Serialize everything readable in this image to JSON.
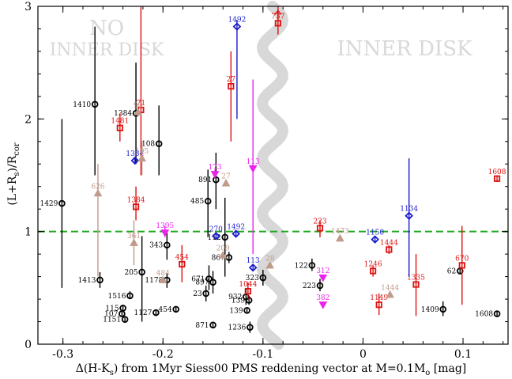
{
  "chart_data": {
    "type": "scatter",
    "title": "",
    "xlabel": "Δ(H-K_s)  from 1Myr Siess00 PMS reddening vector at M=0.1M_o [mag]",
    "xlabel_parts": {
      "a": "Δ(H-K",
      "b": "s",
      "c": ")  from 1Myr Siess00 PMS reddening vector at M=0.1M",
      "d": "o",
      "e": " [mag]"
    },
    "ylabel": "(L+R_s)/R_cor",
    "ylabel_parts": {
      "a": "(L+R",
      "b": "s",
      "c": ")/R",
      "d": "cor"
    },
    "xlim": [
      -0.325,
      0.145
    ],
    "ylim": [
      0,
      3
    ],
    "x_ticks": [
      -0.3,
      -0.2,
      -0.1,
      0,
      0.1
    ],
    "x_tick_labels": [
      "-0.3",
      "-0.2",
      "-0.1",
      "0",
      "0.1"
    ],
    "y_ticks": [
      0,
      1,
      2,
      3
    ],
    "y_tick_labels": [
      "0",
      "1",
      "2",
      "3"
    ],
    "reference_line": {
      "y": 1,
      "style": "dashed",
      "color": "#22aa22"
    },
    "region_labels": {
      "left_line1": "NO",
      "left_line2": "INNER DISK",
      "right": "INNER DISK"
    },
    "colors": {
      "black": "#000000",
      "red": "#dd1111",
      "blue": "#1a1acc",
      "magenta": "#ee22ee",
      "tan": "#c09a8a",
      "green": "#22aa22",
      "band": "#d8d8d8"
    },
    "markers": {
      "black": "circle",
      "red": "square",
      "blue": "diamond",
      "magenta": "triangle-down",
      "tan": "triangle-up"
    },
    "series": [
      {
        "color": "black",
        "points": [
          {
            "x": -0.301,
            "y": 1.25,
            "lo": 0.5,
            "hi": 2.0,
            "label": "1429"
          },
          {
            "x": -0.268,
            "y": 2.13,
            "lo": 1.5,
            "hi": 2.82,
            "label": "1410"
          },
          {
            "x": -0.227,
            "y": 2.05,
            "lo": 1.6,
            "hi": 2.5,
            "label": "1384"
          },
          {
            "x": -0.204,
            "y": 1.78,
            "lo": 1.5,
            "hi": 2.12,
            "label": "108"
          },
          {
            "x": -0.263,
            "y": 0.57,
            "lo": 0.5,
            "hi": 0.64,
            "label": "1413"
          },
          {
            "x": -0.233,
            "y": 0.43,
            "lo": 0.4,
            "hi": 0.47,
            "label": "1516"
          },
          {
            "x": -0.221,
            "y": 0.64,
            "lo": 0.2,
            "hi": 0.96,
            "label": "205"
          },
          {
            "x": -0.196,
            "y": 0.88,
            "lo": 0.75,
            "hi": 1.0,
            "label": "343"
          },
          {
            "x": -0.196,
            "y": 0.57,
            "lo": 0.5,
            "hi": 0.63,
            "label": "1178"
          },
          {
            "x": -0.24,
            "y": 0.32,
            "lo": 0.3,
            "hi": 0.35,
            "label": "115"
          },
          {
            "x": -0.241,
            "y": 0.27,
            "lo": 0.25,
            "hi": 0.3,
            "label": "107"
          },
          {
            "x": -0.238,
            "y": 0.22,
            "lo": 0.2,
            "hi": 0.25,
            "label": "1151"
          },
          {
            "x": -0.207,
            "y": 0.28,
            "lo": 0.26,
            "hi": 0.31,
            "label": "1127"
          },
          {
            "x": -0.187,
            "y": 0.31,
            "lo": 0.29,
            "hi": 0.33,
            "label": "454"
          },
          {
            "x": -0.155,
            "y": 1.27,
            "lo": 0.95,
            "hi": 1.55,
            "label": "485"
          },
          {
            "x": -0.147,
            "y": 1.46,
            "lo": 1.2,
            "hi": 1.7,
            "label": "891"
          },
          {
            "x": -0.138,
            "y": 0.95,
            "lo": 0.6,
            "hi": 1.3,
            "label": "112"
          },
          {
            "x": -0.134,
            "y": 0.77,
            "lo": 0.72,
            "hi": 0.82,
            "label": "867"
          },
          {
            "x": -0.154,
            "y": 0.58,
            "lo": 0.48,
            "hi": 0.7,
            "label": "671"
          },
          {
            "x": -0.15,
            "y": 0.55,
            "lo": 0.45,
            "hi": 0.65,
            "label": "897"
          },
          {
            "x": -0.157,
            "y": 0.45,
            "lo": 0.38,
            "hi": 0.52,
            "label": "23"
          },
          {
            "x": -0.15,
            "y": 0.17,
            "lo": 0.15,
            "hi": 0.2,
            "label": "871"
          },
          {
            "x": -0.117,
            "y": 0.42,
            "lo": 0.35,
            "hi": 0.5,
            "label": "932"
          },
          {
            "x": -0.114,
            "y": 0.39,
            "lo": 0.35,
            "hi": 0.43,
            "label": "139"
          },
          {
            "x": -0.116,
            "y": 0.3,
            "lo": 0.28,
            "hi": 0.32,
            "label": "139"
          },
          {
            "x": -0.113,
            "y": 0.15,
            "lo": 0.1,
            "hi": 0.2,
            "label": "1236"
          },
          {
            "x": -0.1,
            "y": 0.59,
            "lo": 0.52,
            "hi": 0.66,
            "label": "323"
          },
          {
            "x": -0.051,
            "y": 0.7,
            "lo": 0.65,
            "hi": 0.76,
            "label": "122"
          },
          {
            "x": -0.043,
            "y": 0.52,
            "lo": 0.47,
            "hi": 0.58,
            "label": "223"
          },
          {
            "x": 0.08,
            "y": 0.31,
            "lo": 0.25,
            "hi": 0.38,
            "label": "1409"
          },
          {
            "x": 0.097,
            "y": 0.65,
            "lo": 0.62,
            "hi": 0.68,
            "label": "62"
          },
          {
            "x": 0.134,
            "y": 0.27,
            "lo": 0.25,
            "hi": 0.29,
            "label": "1608"
          }
        ]
      },
      {
        "color": "red",
        "points": [
          {
            "x": -0.243,
            "y": 1.92,
            "lo": 1.8,
            "hi": 2.05,
            "label": "1481"
          },
          {
            "x": -0.222,
            "y": 2.08,
            "lo": 1.5,
            "hi": 3.0,
            "label": "71"
          },
          {
            "x": -0.227,
            "y": 1.22,
            "lo": 1.1,
            "hi": 1.4,
            "label": "1384"
          },
          {
            "x": -0.181,
            "y": 0.71,
            "lo": 0.55,
            "hi": 0.88,
            "label": "454"
          },
          {
            "x": -0.132,
            "y": 2.29,
            "lo": 1.8,
            "hi": 2.6,
            "label": "27"
          },
          {
            "x": -0.085,
            "y": 2.85,
            "lo": 2.75,
            "hi": 3.0,
            "label": "737",
            "arrow": "up"
          },
          {
            "x": -0.115,
            "y": 0.47,
            "lo": 0.4,
            "hi": 0.55,
            "label": "1044"
          },
          {
            "x": -0.043,
            "y": 1.03,
            "lo": 0.95,
            "hi": 1.1,
            "label": "223"
          },
          {
            "x": 0.01,
            "y": 0.65,
            "lo": 0.6,
            "hi": 0.7,
            "label": "1246"
          },
          {
            "x": 0.016,
            "y": 0.35,
            "lo": 0.26,
            "hi": 0.45,
            "label": "1149"
          },
          {
            "x": 0.026,
            "y": 0.84,
            "lo": 0.8,
            "hi": 0.88,
            "label": "1444"
          },
          {
            "x": 0.053,
            "y": 0.53,
            "lo": 0.25,
            "hi": 0.8,
            "label": "1335"
          },
          {
            "x": 0.099,
            "y": 0.7,
            "lo": 0.35,
            "hi": 1.05,
            "label": "670"
          },
          {
            "x": 0.134,
            "y": 1.47,
            "lo": 1.44,
            "hi": 1.5,
            "label": "1608"
          }
        ]
      },
      {
        "color": "blue",
        "points": [
          {
            "x": -0.228,
            "y": 1.63,
            "lo": 1.6,
            "hi": 1.66,
            "label": "1384"
          },
          {
            "x": -0.126,
            "y": 2.82,
            "lo": 2.0,
            "hi": 2.88,
            "label": "1492"
          },
          {
            "x": -0.147,
            "y": 0.96,
            "lo": 0.93,
            "hi": 0.99,
            "label": "270"
          },
          {
            "x": -0.127,
            "y": 0.98,
            "lo": 0.95,
            "hi": 1.01,
            "label": "1492"
          },
          {
            "x": -0.11,
            "y": 0.68,
            "lo": 0.65,
            "hi": 0.71,
            "label": "113"
          },
          {
            "x": 0.012,
            "y": 0.93,
            "lo": 0.9,
            "hi": 0.96,
            "label": "1150"
          },
          {
            "x": 0.046,
            "y": 1.14,
            "lo": 0.6,
            "hi": 1.65,
            "label": "1134"
          }
        ]
      },
      {
        "color": "magenta",
        "points": [
          {
            "x": -0.148,
            "y": 1.51,
            "lo": 1.48,
            "hi": 1.55,
            "label": "173"
          },
          {
            "x": -0.11,
            "y": 1.56,
            "lo": 0.8,
            "hi": 2.35,
            "label": "113"
          },
          {
            "x": -0.198,
            "y": 0.99,
            "lo": 0.95,
            "hi": 1.05,
            "label": "1395"
          },
          {
            "x": -0.04,
            "y": 0.59,
            "lo": 0.56,
            "hi": 0.62,
            "label": "312"
          },
          {
            "x": -0.04,
            "y": 0.35,
            "lo": 0.33,
            "hi": 0.37,
            "label": "382"
          }
        ]
      },
      {
        "color": "tan",
        "points": [
          {
            "x": -0.225,
            "y": 2.06,
            "lo": 2.03,
            "hi": 2.09,
            "label": "90"
          },
          {
            "x": -0.221,
            "y": 1.65,
            "lo": 1.5,
            "hi": 1.8,
            "label": "105"
          },
          {
            "x": -0.265,
            "y": 1.34,
            "lo": 0.6,
            "hi": 1.6,
            "label": "626"
          },
          {
            "x": -0.137,
            "y": 1.43,
            "lo": 1.4,
            "hi": 1.46,
            "label": "27"
          },
          {
            "x": -0.229,
            "y": 0.9,
            "lo": 0.7,
            "hi": 1.1,
            "label": "361"
          },
          {
            "x": -0.2,
            "y": 0.57,
            "lo": 0.54,
            "hi": 0.6,
            "label": "484"
          },
          {
            "x": -0.14,
            "y": 0.79,
            "lo": 0.76,
            "hi": 0.82,
            "label": "209"
          },
          {
            "x": -0.093,
            "y": 0.7,
            "lo": 0.67,
            "hi": 0.73,
            "label": "28"
          },
          {
            "x": -0.023,
            "y": 0.94,
            "lo": 0.91,
            "hi": 0.97,
            "label": "1473"
          },
          {
            "x": 0.027,
            "y": 0.44,
            "lo": 0.41,
            "hi": 0.47,
            "label": "1444"
          }
        ]
      }
    ]
  }
}
